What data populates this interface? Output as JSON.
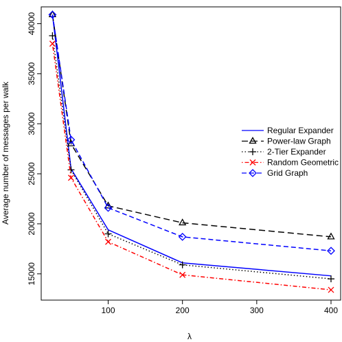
{
  "chart_data": {
    "type": "line",
    "title": "",
    "xlabel": "λ",
    "ylabel": "Average number of messages per walk",
    "xlim": [
      20,
      400
    ],
    "ylim": [
      13200,
      41200
    ],
    "x_ticks": [
      100,
      200,
      300,
      400
    ],
    "y_ticks": [
      15000,
      20000,
      25000,
      30000,
      35000,
      40000
    ],
    "grid": false,
    "legend_position": "right",
    "x": [
      25,
      50,
      100,
      200,
      400
    ],
    "series": [
      {
        "name": "Regular Expander",
        "color": "#0000ff",
        "dash": "solid",
        "marker": "none",
        "values": [
          40900,
          25500,
          19400,
          16100,
          14800
        ]
      },
      {
        "name": "Power-law Graph",
        "color": "#000000",
        "dash": "long-dash",
        "marker": "triangle",
        "values": [
          40900,
          28000,
          21800,
          20100,
          18700
        ]
      },
      {
        "name": "2-Tier Expander",
        "color": "#000000",
        "dash": "dotted",
        "marker": "plus",
        "values": [
          38800,
          25400,
          19000,
          15900,
          14500
        ]
      },
      {
        "name": "Random Geometric",
        "color": "#ff0000",
        "dash": "dot-dash",
        "marker": "cross",
        "values": [
          38000,
          24600,
          18200,
          14900,
          13400
        ]
      },
      {
        "name": "Grid Graph",
        "color": "#0000ff",
        "dash": "dashed",
        "marker": "diamond",
        "values": [
          40900,
          28400,
          21600,
          18700,
          17300
        ]
      }
    ]
  }
}
